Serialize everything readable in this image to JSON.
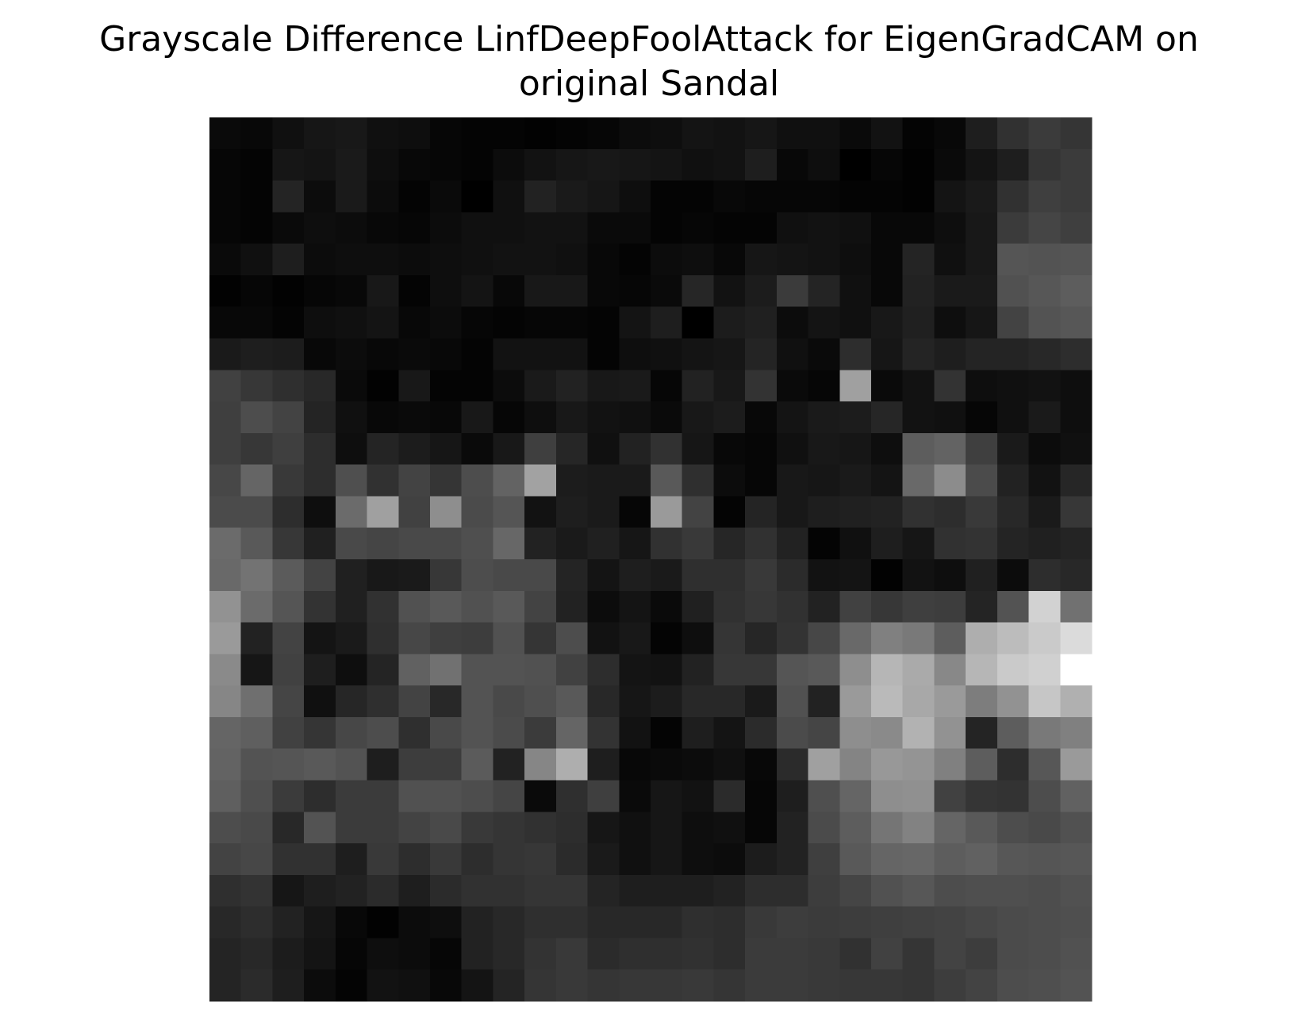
{
  "title_lines": [
    "Grayscale Difference LinfDeepFoolAttack for EigenGradCAM on",
    "original Sandal"
  ],
  "chart_data": {
    "type": "heatmap",
    "title": "Grayscale Difference LinfDeepFoolAttack for EigenGradCAM on original Sandal",
    "colormap": "gray",
    "axes_visible": false,
    "grid": false,
    "rows": 28,
    "cols": 28,
    "values": [
      [
        10,
        8,
        16,
        22,
        24,
        16,
        14,
        6,
        4,
        4,
        2,
        4,
        6,
        12,
        14,
        20,
        18,
        22,
        16,
        16,
        10,
        18,
        4,
        8,
        30,
        48,
        58,
        52
      ],
      [
        6,
        4,
        22,
        20,
        26,
        14,
        8,
        6,
        4,
        12,
        18,
        22,
        24,
        22,
        20,
        16,
        18,
        30,
        8,
        14,
        0,
        6,
        2,
        10,
        20,
        30,
        52,
        58
      ],
      [
        6,
        4,
        36,
        12,
        26,
        12,
        4,
        10,
        0,
        16,
        34,
        26,
        22,
        14,
        4,
        4,
        8,
        6,
        6,
        6,
        4,
        4,
        2,
        20,
        26,
        48,
        62,
        58
      ],
      [
        6,
        4,
        10,
        14,
        12,
        8,
        6,
        12,
        16,
        16,
        18,
        18,
        10,
        10,
        4,
        6,
        4,
        4,
        16,
        18,
        16,
        8,
        8,
        14,
        24,
        58,
        68,
        62
      ],
      [
        10,
        16,
        30,
        12,
        14,
        14,
        12,
        14,
        16,
        18,
        18,
        16,
        8,
        4,
        12,
        14,
        8,
        22,
        20,
        18,
        14,
        8,
        36,
        16,
        24,
        84,
        82,
        84
      ],
      [
        2,
        6,
        2,
        6,
        8,
        24,
        4,
        14,
        20,
        8,
        24,
        24,
        8,
        6,
        10,
        38,
        18,
        28,
        58,
        36,
        16,
        8,
        34,
        26,
        26,
        80,
        86,
        92
      ],
      [
        8,
        8,
        4,
        14,
        16,
        20,
        8,
        12,
        6,
        4,
        6,
        6,
        4,
        20,
        30,
        0,
        28,
        32,
        12,
        20,
        16,
        24,
        32,
        14,
        22,
        66,
        82,
        86
      ],
      [
        26,
        30,
        28,
        8,
        12,
        8,
        10,
        8,
        4,
        18,
        18,
        18,
        4,
        14,
        16,
        20,
        22,
        36,
        16,
        10,
        44,
        22,
        36,
        30,
        36,
        36,
        40,
        44
      ],
      [
        64,
        54,
        46,
        40,
        10,
        2,
        24,
        4,
        4,
        12,
        26,
        34,
        24,
        26,
        6,
        34,
        24,
        50,
        10,
        6,
        158,
        10,
        18,
        50,
        14,
        16,
        18,
        14
      ],
      [
        62,
        76,
        66,
        36,
        16,
        8,
        10,
        8,
        24,
        6,
        14,
        24,
        18,
        16,
        10,
        24,
        28,
        8,
        20,
        26,
        28,
        38,
        18,
        16,
        6,
        16,
        26,
        14
      ],
      [
        62,
        54,
        62,
        44,
        14,
        36,
        28,
        22,
        10,
        24,
        62,
        38,
        16,
        34,
        48,
        22,
        8,
        6,
        16,
        24,
        22,
        14,
        92,
        98,
        62,
        26,
        12,
        16
      ],
      [
        70,
        100,
        56,
        44,
        78,
        48,
        66,
        52,
        76,
        98,
        160,
        28,
        26,
        26,
        88,
        46,
        12,
        6,
        24,
        22,
        26,
        20,
        104,
        138,
        74,
        34,
        18,
        38
      ],
      [
        74,
        74,
        44,
        14,
        106,
        158,
        64,
        140,
        74,
        84,
        18,
        30,
        26,
        6,
        152,
        66,
        4,
        36,
        24,
        30,
        32,
        34,
        48,
        44,
        56,
        40,
        26,
        54
      ],
      [
        106,
        88,
        54,
        32,
        72,
        68,
        72,
        72,
        78,
        102,
        34,
        26,
        32,
        22,
        48,
        56,
        38,
        48,
        34,
        4,
        16,
        30,
        22,
        48,
        50,
        36,
        32,
        36
      ],
      [
        104,
        114,
        90,
        66,
        32,
        24,
        26,
        54,
        76,
        72,
        72,
        36,
        20,
        30,
        26,
        46,
        46,
        56,
        42,
        18,
        20,
        2,
        18,
        14,
        32,
        12,
        44,
        40
      ],
      [
        144,
        106,
        84,
        50,
        32,
        48,
        80,
        88,
        80,
        88,
        66,
        34,
        12,
        20,
        10,
        32,
        48,
        54,
        48,
        34,
        64,
        54,
        62,
        60,
        36,
        82,
        208,
        112
      ],
      [
        152,
        34,
        66,
        20,
        26,
        46,
        70,
        62,
        60,
        80,
        52,
        76,
        18,
        24,
        4,
        14,
        52,
        38,
        50,
        70,
        104,
        126,
        120,
        92,
        172,
        186,
        200,
        216
      ],
      [
        136,
        22,
        64,
        30,
        14,
        36,
        96,
        112,
        82,
        82,
        80,
        64,
        44,
        20,
        18,
        34,
        54,
        54,
        84,
        88,
        140,
        180,
        168,
        134,
        180,
        200,
        206,
        252
      ],
      [
        132,
        110,
        68,
        16,
        38,
        46,
        66,
        40,
        82,
        72,
        78,
        88,
        40,
        22,
        28,
        40,
        40,
        26,
        80,
        34,
        152,
        184,
        166,
        152,
        124,
        144,
        196,
        174
      ],
      [
        100,
        94,
        64,
        52,
        70,
        76,
        46,
        72,
        82,
        74,
        58,
        100,
        50,
        18,
        4,
        30,
        20,
        42,
        74,
        68,
        140,
        136,
        176,
        144,
        36,
        92,
        120,
        126
      ],
      [
        98,
        82,
        84,
        88,
        82,
        30,
        60,
        60,
        90,
        34,
        132,
        172,
        30,
        8,
        10,
        12,
        16,
        8,
        42,
        158,
        130,
        150,
        146,
        126,
        92,
        44,
        86,
        152
      ],
      [
        94,
        78,
        58,
        44,
        58,
        58,
        80,
        80,
        76,
        68,
        10,
        46,
        62,
        10,
        22,
        18,
        42,
        6,
        30,
        78,
        100,
        140,
        142,
        64,
        52,
        50,
        76,
        96
      ],
      [
        76,
        72,
        40,
        82,
        58,
        58,
        66,
        72,
        56,
        52,
        48,
        44,
        22,
        16,
        22,
        14,
        16,
        6,
        34,
        74,
        92,
        116,
        128,
        100,
        88,
        76,
        72,
        80
      ],
      [
        66,
        70,
        48,
        48,
        30,
        56,
        44,
        56,
        44,
        52,
        54,
        42,
        26,
        16,
        22,
        14,
        12,
        28,
        34,
        62,
        88,
        100,
        102,
        92,
        96,
        86,
        84,
        86
      ],
      [
        46,
        50,
        22,
        30,
        34,
        42,
        30,
        42,
        48,
        48,
        52,
        52,
        36,
        30,
        30,
        30,
        34,
        44,
        44,
        60,
        68,
        80,
        86,
        76,
        78,
        78,
        76,
        80
      ],
      [
        40,
        44,
        34,
        22,
        8,
        2,
        12,
        14,
        34,
        40,
        46,
        46,
        40,
        40,
        40,
        46,
        44,
        56,
        60,
        58,
        60,
        62,
        64,
        66,
        70,
        74,
        76,
        78
      ],
      [
        36,
        40,
        28,
        20,
        6,
        14,
        12,
        6,
        34,
        40,
        50,
        56,
        42,
        46,
        46,
        48,
        44,
        58,
        58,
        56,
        48,
        64,
        52,
        66,
        60,
        74,
        76,
        80
      ],
      [
        36,
        42,
        30,
        12,
        4,
        18,
        16,
        8,
        20,
        36,
        52,
        56,
        52,
        54,
        54,
        56,
        52,
        58,
        58,
        56,
        54,
        54,
        52,
        60,
        66,
        76,
        78,
        82
      ]
    ]
  }
}
